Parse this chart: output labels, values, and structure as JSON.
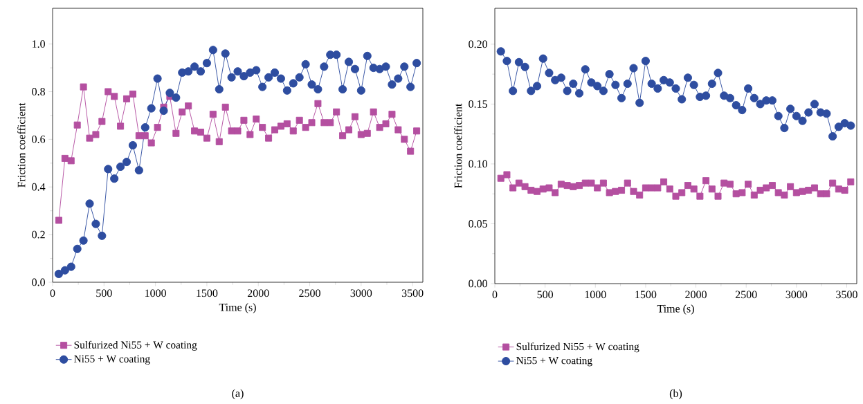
{
  "chart_data": [
    {
      "type": "line",
      "xlabel": "Time (s)",
      "ylabel": "Friction coefficient",
      "xlim": [
        0,
        3600
      ],
      "ylim": [
        0,
        1.15
      ],
      "xticks": [
        0,
        500,
        1000,
        1500,
        2000,
        2500,
        3000,
        3500
      ],
      "yticks": [
        {
          "value": 0,
          "label": "0.0"
        },
        {
          "value": 0.2,
          "label": "0.2"
        },
        {
          "value": 0.4,
          "label": "0.4"
        },
        {
          "value": 0.6,
          "label": "0.6"
        },
        {
          "value": 0.8,
          "label": "0.8"
        },
        {
          "value": 1.0,
          "label": "1.0"
        }
      ],
      "x": [
        60,
        120,
        180,
        240,
        300,
        360,
        420,
        480,
        540,
        600,
        660,
        720,
        780,
        840,
        900,
        960,
        1020,
        1080,
        1140,
        1200,
        1260,
        1320,
        1380,
        1440,
        1500,
        1560,
        1620,
        1680,
        1740,
        1800,
        1860,
        1920,
        1980,
        2040,
        2100,
        2160,
        2220,
        2280,
        2340,
        2400,
        2460,
        2520,
        2580,
        2640,
        2700,
        2760,
        2820,
        2880,
        2940,
        3000,
        3060,
        3120,
        3180,
        3240,
        3300,
        3360,
        3420,
        3480,
        3540
      ],
      "series": [
        {
          "name": "Sulfurized Ni55 + W coating",
          "color": "#b44fa0",
          "marker": "square",
          "values": [
            0.26,
            0.52,
            0.51,
            0.66,
            0.82,
            0.605,
            0.62,
            0.675,
            0.8,
            0.78,
            0.655,
            0.77,
            0.79,
            0.615,
            0.615,
            0.585,
            0.65,
            0.735,
            0.78,
            0.625,
            0.715,
            0.74,
            0.635,
            0.63,
            0.605,
            0.705,
            0.59,
            0.735,
            0.635,
            0.635,
            0.68,
            0.62,
            0.685,
            0.65,
            0.605,
            0.64,
            0.655,
            0.665,
            0.635,
            0.68,
            0.65,
            0.67,
            0.75,
            0.67,
            0.67,
            0.715,
            0.615,
            0.64,
            0.695,
            0.62,
            0.625,
            0.715,
            0.65,
            0.665,
            0.705,
            0.64,
            0.6,
            0.55,
            0.635
          ]
        },
        {
          "name": "Ni55 + W coating",
          "color": "#2e4da0",
          "marker": "circle",
          "values": [
            0.035,
            0.05,
            0.065,
            0.14,
            0.175,
            0.33,
            0.245,
            0.195,
            0.475,
            0.435,
            0.485,
            0.505,
            0.575,
            0.47,
            0.65,
            0.73,
            0.855,
            0.72,
            0.795,
            0.775,
            0.88,
            0.885,
            0.905,
            0.885,
            0.92,
            0.975,
            0.81,
            0.96,
            0.86,
            0.885,
            0.865,
            0.88,
            0.89,
            0.82,
            0.86,
            0.88,
            0.855,
            0.805,
            0.835,
            0.86,
            0.915,
            0.83,
            0.81,
            0.905,
            0.955,
            0.955,
            0.81,
            0.925,
            0.895,
            0.805,
            0.95,
            0.9,
            0.895,
            0.905,
            0.83,
            0.855,
            0.905,
            0.82,
            0.92
          ]
        }
      ],
      "legend": "bottom",
      "line_style": "solid",
      "annotations": [
        "(a)"
      ]
    },
    {
      "type": "line",
      "xlabel": "Time (s)",
      "ylabel": "Friction coefficient",
      "xlim": [
        0,
        3600
      ],
      "ylim": [
        0,
        0.23
      ],
      "xticks": [
        0,
        500,
        1000,
        1500,
        2000,
        2500,
        3000,
        3500
      ],
      "yticks": [
        {
          "value": 0,
          "label": "0.00"
        },
        {
          "value": 0.05,
          "label": "0.05"
        },
        {
          "value": 0.1,
          "label": "0.10"
        },
        {
          "value": 0.15,
          "label": "0.15"
        },
        {
          "value": 0.2,
          "label": "0.20"
        }
      ],
      "x": [
        60,
        120,
        180,
        240,
        300,
        360,
        420,
        480,
        540,
        600,
        660,
        720,
        780,
        840,
        900,
        960,
        1020,
        1080,
        1140,
        1200,
        1260,
        1320,
        1380,
        1440,
        1500,
        1560,
        1620,
        1680,
        1740,
        1800,
        1860,
        1920,
        1980,
        2040,
        2100,
        2160,
        2220,
        2280,
        2340,
        2400,
        2460,
        2520,
        2580,
        2640,
        2700,
        2760,
        2820,
        2880,
        2940,
        3000,
        3060,
        3120,
        3180,
        3240,
        3300,
        3360,
        3420,
        3480,
        3540
      ],
      "series": [
        {
          "name": "Sulfurized Ni55 + W coating",
          "color": "#b44fa0",
          "marker": "square",
          "values": [
            0.088,
            0.091,
            0.08,
            0.084,
            0.081,
            0.078,
            0.077,
            0.079,
            0.08,
            0.076,
            0.083,
            0.082,
            0.081,
            0.082,
            0.084,
            0.084,
            0.08,
            0.084,
            0.076,
            0.077,
            0.078,
            0.084,
            0.077,
            0.074,
            0.08,
            0.08,
            0.08,
            0.085,
            0.079,
            0.073,
            0.076,
            0.082,
            0.079,
            0.073,
            0.086,
            0.079,
            0.073,
            0.084,
            0.083,
            0.075,
            0.076,
            0.083,
            0.074,
            0.078,
            0.08,
            0.082,
            0.076,
            0.074,
            0.081,
            0.076,
            0.077,
            0.078,
            0.08,
            0.075,
            0.075,
            0.084,
            0.079,
            0.078,
            0.085
          ]
        },
        {
          "name": "Ni55 + W coating",
          "color": "#2e4da0",
          "marker": "circle",
          "values": [
            0.194,
            0.186,
            0.161,
            0.185,
            0.181,
            0.161,
            0.165,
            0.188,
            0.176,
            0.17,
            0.172,
            0.161,
            0.167,
            0.159,
            0.179,
            0.168,
            0.165,
            0.161,
            0.175,
            0.166,
            0.155,
            0.167,
            0.18,
            0.151,
            0.186,
            0.167,
            0.163,
            0.17,
            0.168,
            0.163,
            0.154,
            0.172,
            0.166,
            0.156,
            0.157,
            0.167,
            0.176,
            0.157,
            0.155,
            0.149,
            0.145,
            0.163,
            0.155,
            0.15,
            0.153,
            0.153,
            0.14,
            0.13,
            0.146,
            0.14,
            0.136,
            0.143,
            0.15,
            0.143,
            0.142,
            0.123,
            0.131,
            0.134,
            0.132
          ]
        }
      ],
      "legend": "bottom",
      "line_style": "solid",
      "annotations": [
        "(b)"
      ]
    }
  ]
}
